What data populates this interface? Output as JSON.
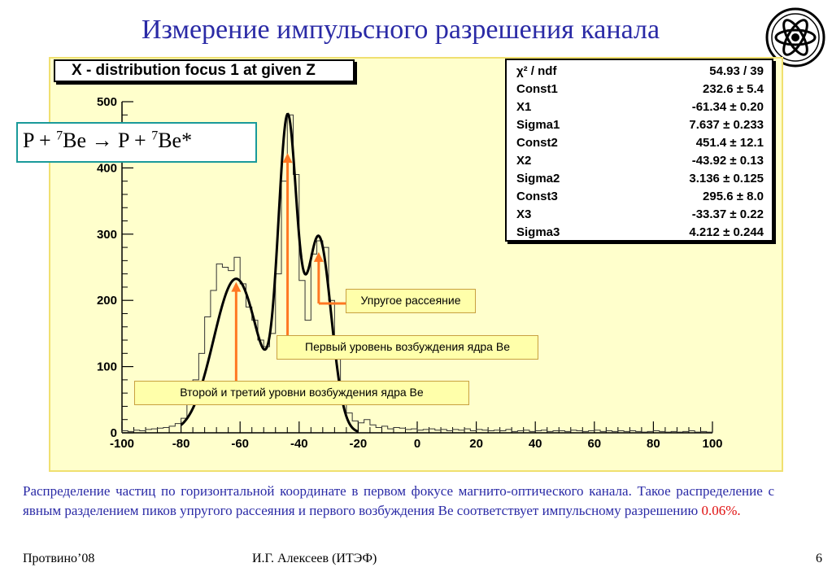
{
  "slide": {
    "title": "Измерение импульсного разрешения канала",
    "reaction": {
      "part1": "P + ",
      "sup1": "7",
      "part2": "Be → P + ",
      "sup2": "7",
      "part3": "Be*"
    },
    "caption_main": "Распределение частиц по горизонтальной координате в первом фокусе магнито-оптического канала. Такое распределение с явным разделением пиков упругого рассеяния и первого возбуждения Be соответствует импульсному разрешению ",
    "caption_highlight": "0.06%.",
    "footer_left": "Протвино’08",
    "footer_center": "И.Г. Алексеев (ИТЭФ)",
    "footer_right": "6",
    "annotations": {
      "elastic": "Упругое рассеяние",
      "first_level": "Первый уровень возбуждения ядра Be",
      "second_third": "Второй и третий уровни возбуждения ядра Be"
    },
    "colors": {
      "title": "#2a2aa6",
      "plot_bg": "#ffffcc",
      "arrow": "#ff7722",
      "highlight": "#e01010"
    }
  },
  "chart_data": {
    "type": "line",
    "title": "X - distribution focus 1 at given Z",
    "xlabel": "",
    "ylabel": "",
    "xlim": [
      -100,
      100
    ],
    "ylim": [
      0,
      500
    ],
    "x_ticks": [
      -100,
      -80,
      -60,
      -40,
      -20,
      0,
      20,
      40,
      60,
      80,
      100
    ],
    "y_ticks": [
      0,
      100,
      200,
      300,
      400,
      500
    ],
    "fit": {
      "name": "3-gaussian fit",
      "components": [
        {
          "const": 232.6,
          "mean": -61.34,
          "sigma": 7.637
        },
        {
          "const": 451.4,
          "mean": -43.92,
          "sigma": 3.136
        },
        {
          "const": 295.6,
          "mean": -33.37,
          "sigma": 4.212
        }
      ]
    },
    "histogram": {
      "x": [
        -99,
        -97,
        -95,
        -93,
        -91,
        -89,
        -87,
        -85,
        -83,
        -81,
        -79,
        -77,
        -75,
        -73,
        -71,
        -69,
        -67,
        -65,
        -63,
        -61,
        -59,
        -57,
        -55,
        -53,
        -51,
        -49,
        -47,
        -45,
        -43,
        -41,
        -39,
        -37,
        -35,
        -33,
        -31,
        -29,
        -27,
        -25,
        -23,
        -21,
        -19,
        -17,
        -15,
        -13,
        -11,
        -9,
        -7,
        -5,
        -3,
        -1,
        1,
        3,
        5,
        7,
        9,
        11,
        13,
        15,
        17,
        19,
        21,
        23,
        25,
        27,
        29,
        31,
        33,
        35,
        37,
        39,
        41,
        43,
        45,
        47,
        49,
        51,
        53,
        55,
        57,
        59,
        61,
        63,
        65,
        67,
        69,
        71,
        73,
        75,
        77,
        79,
        81,
        83,
        85,
        87,
        89,
        91,
        93,
        95,
        97,
        99
      ],
      "y": [
        3,
        2,
        4,
        3,
        5,
        6,
        7,
        8,
        10,
        14,
        22,
        45,
        80,
        120,
        175,
        215,
        255,
        250,
        245,
        265,
        225,
        190,
        170,
        140,
        130,
        150,
        240,
        380,
        480,
        390,
        230,
        170,
        270,
        290,
        280,
        200,
        120,
        60,
        30,
        18,
        15,
        20,
        12,
        8,
        10,
        6,
        8,
        7,
        5,
        6,
        4,
        5,
        6,
        4,
        5,
        3,
        5,
        4,
        6,
        3,
        5,
        4,
        3,
        4,
        3,
        5,
        2,
        3,
        4,
        2,
        3,
        4,
        2,
        3,
        3,
        2,
        4,
        3,
        2,
        3,
        4,
        2,
        3,
        2,
        3,
        2,
        3,
        2,
        1,
        2,
        3,
        2,
        1,
        2,
        1,
        2,
        3,
        1,
        2,
        1
      ]
    },
    "stats": [
      {
        "label": "χ² / ndf",
        "value": "54.93 / 39"
      },
      {
        "label": "Const1",
        "value": "232.6 ± 5.4"
      },
      {
        "label": "X1",
        "value": "-61.34 ± 0.20"
      },
      {
        "label": "Sigma1",
        "value": "7.637 ± 0.233"
      },
      {
        "label": "Const2",
        "value": "451.4 ± 12.1"
      },
      {
        "label": "X2",
        "value": "-43.92 ± 0.13"
      },
      {
        "label": "Sigma2",
        "value": "3.136 ± 0.125"
      },
      {
        "label": "Const3",
        "value": "295.6 ± 8.0"
      },
      {
        "label": "X3",
        "value": "-33.37 ± 0.22"
      },
      {
        "label": "Sigma3",
        "value": "4.212 ± 0.244"
      }
    ],
    "grid": false,
    "legend": "top-right"
  }
}
